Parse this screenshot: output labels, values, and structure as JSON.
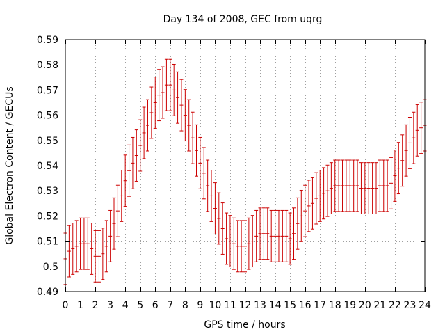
{
  "chart_data": {
    "type": "errorbar",
    "title": "Day 134 of 2008, GEC from uqrg",
    "xlabel": "GPS time / hours",
    "ylabel": "Global Electron Content / GECUs",
    "xlim": [
      0,
      24
    ],
    "ylim": [
      0.49,
      0.59
    ],
    "grid": true,
    "series_color": "#cc0000",
    "x_ticks": [
      "0",
      "1",
      "2",
      "3",
      "4",
      "5",
      "6",
      "7",
      "8",
      "9",
      "10",
      "11",
      "12",
      "13",
      "14",
      "15",
      "16",
      "17",
      "18",
      "19",
      "20",
      "21",
      "22",
      "23",
      "24"
    ],
    "y_ticks": [
      "0.49",
      "0.5",
      "0.51",
      "0.52",
      "0.53",
      "0.54",
      "0.55",
      "0.56",
      "0.57",
      "0.58",
      "0.59"
    ],
    "series": [
      {
        "name": "GEC",
        "x": [
          0,
          0.25,
          0.5,
          0.75,
          1,
          1.25,
          1.5,
          1.75,
          2,
          2.25,
          2.5,
          2.75,
          3,
          3.25,
          3.5,
          3.75,
          4,
          4.25,
          4.5,
          4.75,
          5,
          5.25,
          5.5,
          5.75,
          6,
          6.25,
          6.5,
          6.75,
          7,
          7.25,
          7.5,
          7.75,
          8,
          8.25,
          8.5,
          8.75,
          9,
          9.25,
          9.5,
          9.75,
          10,
          10.25,
          10.5,
          10.75,
          11,
          11.25,
          11.5,
          11.75,
          12,
          12.25,
          12.5,
          12.75,
          13,
          13.25,
          13.5,
          13.75,
          14,
          14.25,
          14.5,
          14.75,
          15,
          15.25,
          15.5,
          15.75,
          16,
          16.25,
          16.5,
          16.75,
          17,
          17.25,
          17.5,
          17.75,
          18,
          18.25,
          18.5,
          18.75,
          19,
          19.25,
          19.5,
          19.75,
          20,
          20.25,
          20.5,
          20.75,
          21,
          21.25,
          21.5,
          21.75,
          22,
          22.25,
          22.5,
          22.75,
          23,
          23.25,
          23.5,
          23.75,
          24
        ],
        "y": [
          0.503,
          0.506,
          0.507,
          0.508,
          0.509,
          0.509,
          0.509,
          0.507,
          0.504,
          0.504,
          0.505,
          0.508,
          0.512,
          0.517,
          0.522,
          0.528,
          0.534,
          0.538,
          0.541,
          0.544,
          0.548,
          0.553,
          0.556,
          0.561,
          0.565,
          0.568,
          0.569,
          0.572,
          0.572,
          0.57,
          0.567,
          0.564,
          0.56,
          0.556,
          0.551,
          0.546,
          0.541,
          0.537,
          0.532,
          0.528,
          0.523,
          0.519,
          0.515,
          0.511,
          0.51,
          0.509,
          0.508,
          0.508,
          0.508,
          0.509,
          0.51,
          0.512,
          0.513,
          0.513,
          0.513,
          0.512,
          0.512,
          0.512,
          0.512,
          0.512,
          0.511,
          0.513,
          0.517,
          0.52,
          0.522,
          0.524,
          0.525,
          0.527,
          0.528,
          0.529,
          0.53,
          0.531,
          0.532,
          0.532,
          0.532,
          0.532,
          0.532,
          0.532,
          0.532,
          0.531,
          0.531,
          0.531,
          0.531,
          0.531,
          0.532,
          0.532,
          0.532,
          0.533,
          0.536,
          0.539,
          0.542,
          0.546,
          0.549,
          0.551,
          0.554,
          0.555,
          0.556
        ],
        "error": 0.0102
      }
    ]
  }
}
